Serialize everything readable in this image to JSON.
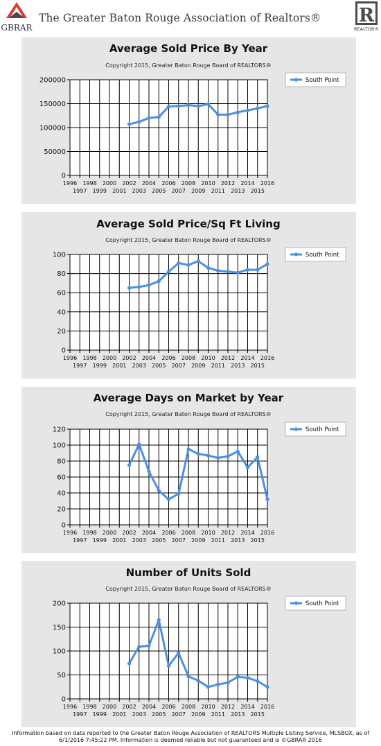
{
  "header": {
    "logo_left_text": "GBRAR",
    "title": "The Greater Baton Rouge Association of Realtors®",
    "logo_right_text": "REALTOR®"
  },
  "footer": {
    "line1": "Information based on data reported to the Greater Baton Rouge Association of REALTORS Multiple Listing Service, MLSBOX, as of",
    "line2": "6/1/2016 7:45:22 PM. Information is deemed reliable but not guaranteed and is ©GBRAR 2016"
  },
  "colors": {
    "series": "#4a90e2",
    "panel_bg": "#e6e6e6",
    "plot_bg": "#ffffff",
    "grid": "#000000"
  },
  "chart_data": [
    {
      "type": "line",
      "title": "Average Sold Price By Year",
      "subtitle": "Copyright 2015, Greater Baton Rouge Board of REALTORS®",
      "xlabel": "",
      "ylabel": "",
      "xlim": [
        1996,
        2016
      ],
      "ylim": [
        0,
        200000
      ],
      "yticks": [
        0,
        50000,
        100000,
        150000,
        200000
      ],
      "xtick_labels_upper": [
        "1996",
        "1998",
        "2000",
        "2002",
        "2004",
        "2006",
        "2008",
        "2010",
        "2012",
        "2014",
        "2016"
      ],
      "xtick_labels_lower": [
        "1997",
        "1999",
        "2001",
        "2003",
        "2005",
        "2007",
        "2009",
        "2011",
        "2013",
        "2015"
      ],
      "grid": true,
      "legend_position": "top-right",
      "series": [
        {
          "name": "South Point",
          "x": [
            2002,
            2003,
            2004,
            2005,
            2006,
            2007,
            2008,
            2009,
            2010,
            2011,
            2012,
            2013,
            2014,
            2015,
            2016
          ],
          "values": [
            107000,
            112000,
            120000,
            122000,
            144000,
            145000,
            147000,
            145000,
            149000,
            127000,
            127000,
            132000,
            136000,
            140000,
            145000
          ]
        }
      ]
    },
    {
      "type": "line",
      "title": "Average Sold Price/Sq Ft Living",
      "subtitle": "Copyright 2015, Greater Baton Rouge Board of REALTORS®",
      "xlabel": "",
      "ylabel": "",
      "xlim": [
        1996,
        2016
      ],
      "ylim": [
        0,
        100
      ],
      "yticks": [
        0,
        20,
        40,
        60,
        80,
        100
      ],
      "xtick_labels_upper": [
        "1996",
        "1998",
        "2000",
        "2002",
        "2004",
        "2006",
        "2008",
        "2010",
        "2012",
        "2014",
        "2016"
      ],
      "xtick_labels_lower": [
        "1997",
        "1999",
        "2001",
        "2003",
        "2005",
        "2007",
        "2009",
        "2011",
        "2013",
        "2015"
      ],
      "grid": true,
      "legend_position": "top-right",
      "series": [
        {
          "name": "South Point",
          "x": [
            2002,
            2003,
            2004,
            2005,
            2006,
            2007,
            2008,
            2009,
            2010,
            2011,
            2012,
            2013,
            2014,
            2015,
            2016
          ],
          "values": [
            65,
            66,
            68,
            72,
            82,
            91,
            89,
            93,
            86,
            83,
            82,
            81,
            84,
            84,
            90
          ]
        }
      ]
    },
    {
      "type": "line",
      "title": "Average Days on Market by Year",
      "subtitle": "Copyright 2015, Greater Baton Rouge Board of REALTORS®",
      "xlabel": "",
      "ylabel": "",
      "xlim": [
        1996,
        2016
      ],
      "ylim": [
        0,
        120
      ],
      "yticks": [
        0,
        20,
        40,
        60,
        80,
        100,
        120
      ],
      "xtick_labels_upper": [
        "1996",
        "1998",
        "2000",
        "2002",
        "2004",
        "2006",
        "2008",
        "2010",
        "2012",
        "2014",
        "2016"
      ],
      "xtick_labels_lower": [
        "1997",
        "1999",
        "2001",
        "2003",
        "2005",
        "2007",
        "2009",
        "2011",
        "2013",
        "2015"
      ],
      "grid": true,
      "legend_position": "top-right",
      "series": [
        {
          "name": "South Point",
          "x": [
            2002,
            2003,
            2004,
            2005,
            2006,
            2007,
            2008,
            2009,
            2010,
            2011,
            2012,
            2013,
            2014,
            2015,
            2016
          ],
          "values": [
            75,
            101,
            67,
            43,
            32,
            39,
            95,
            89,
            87,
            84,
            86,
            92,
            72,
            85,
            32
          ]
        }
      ]
    },
    {
      "type": "line",
      "title": "Number of Units Sold",
      "subtitle": "Copyright 2015, Greater Baton Rouge Board of REALTORS®",
      "xlabel": "",
      "ylabel": "",
      "xlim": [
        1996,
        2016
      ],
      "ylim": [
        0,
        200
      ],
      "yticks": [
        0,
        50,
        100,
        150,
        200
      ],
      "xtick_labels_upper": [
        "1996",
        "1998",
        "2000",
        "2002",
        "2004",
        "2006",
        "2008",
        "2010",
        "2012",
        "2014",
        "2016"
      ],
      "xtick_labels_lower": [
        "1997",
        "1999",
        "2001",
        "2003",
        "2005",
        "2007",
        "2009",
        "2011",
        "2013",
        "2015"
      ],
      "grid": true,
      "legend_position": "top-right",
      "series": [
        {
          "name": "South Point",
          "x": [
            2002,
            2003,
            2004,
            2005,
            2006,
            2007,
            2008,
            2009,
            2010,
            2011,
            2012,
            2013,
            2014,
            2015,
            2016
          ],
          "values": [
            74,
            109,
            111,
            165,
            69,
            96,
            47,
            38,
            25,
            30,
            34,
            46,
            44,
            37,
            25
          ]
        }
      ]
    }
  ]
}
